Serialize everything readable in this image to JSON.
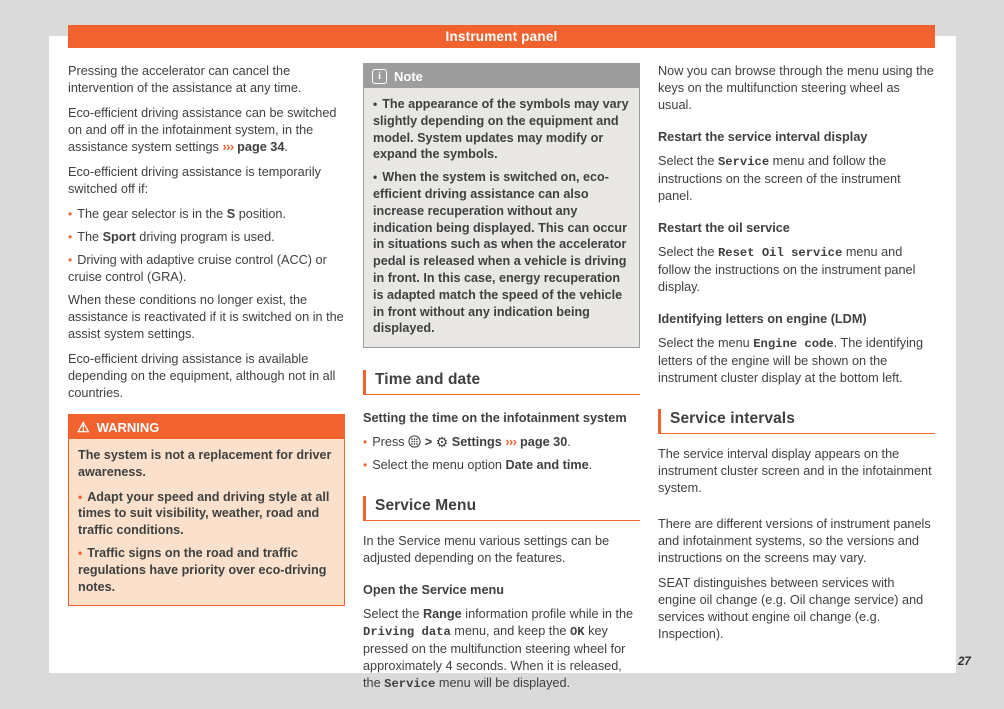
{
  "page": {
    "title": "Instrument panel",
    "page_number": "27",
    "colors": {
      "accent_orange": "#F0622E",
      "canvas_bg": "#DADADA",
      "page_bg": "#FFFFFF",
      "body_text": "#3F4040",
      "note_header_bg": "#9D9D9D",
      "note_body_bg": "#E8E7E4",
      "warning_body_bg": "#FBE1CB"
    }
  },
  "boxes": {
    "warning_title": "WARNING",
    "note_title": "Note"
  },
  "columns": {
    "left": [
      {
        "type": "p",
        "segments": [
          {
            "t": "Pressing the accelerator can cancel the intervention of the assistance at any time."
          }
        ]
      },
      {
        "type": "p",
        "segments": [
          {
            "t": "Eco-efficient driving assistance can be switched on and off in the infotainment system, in the assistance system settings "
          },
          {
            "a": "›››"
          },
          {
            "b": " page 34"
          },
          {
            "t": "."
          }
        ]
      },
      {
        "type": "p",
        "segments": [
          {
            "t": "Eco-efficient driving assistance is temporarily switched off if:"
          }
        ]
      },
      {
        "type": "bullet",
        "segments": [
          {
            "t": "The gear selector is in the "
          },
          {
            "b": "S"
          },
          {
            "t": " position."
          }
        ]
      },
      {
        "type": "bullet",
        "segments": [
          {
            "t": "The "
          },
          {
            "b": "Sport"
          },
          {
            "t": " driving program is used."
          }
        ]
      },
      {
        "type": "bullet",
        "segments": [
          {
            "t": "Driving with adaptive cruise control (ACC) or cruise control (GRA)."
          }
        ]
      },
      {
        "type": "p",
        "segments": [
          {
            "t": "When these conditions no longer exist, the assistance is reactivated if it is switched on in the assist system settings."
          }
        ]
      },
      {
        "type": "p",
        "segments": [
          {
            "t": "Eco-efficient driving assistance is available depending on the equipment, although not in all countries."
          }
        ]
      },
      {
        "type": "warning",
        "title": "WARNING",
        "icon": "warning-triangle-icon",
        "blocks": [
          {
            "type": "p",
            "segments": [
              {
                "t": "The system is not a replacement for driver awareness."
              }
            ]
          },
          {
            "type": "bullet",
            "segments": [
              {
                "t": "Adapt your speed and driving style at all times to suit visibility, weather, road and traffic conditions."
              }
            ]
          },
          {
            "type": "bullet",
            "segments": [
              {
                "t": "Traffic signs on the road and traffic regulations have priority over eco-driving notes."
              }
            ]
          }
        ]
      }
    ],
    "middle": [
      {
        "type": "note",
        "title": "Note",
        "icon": "info-icon",
        "blocks": [
          {
            "type": "bullet",
            "segments": [
              {
                "t": "The appearance of the symbols may vary slightly depending on the equipment and model. System updates may modify or expand the symbols."
              }
            ]
          },
          {
            "type": "bullet",
            "segments": [
              {
                "t": "When the system is switched on, eco-efficient driving assistance can also increase recuperation without any indication being displayed. This can occur in situations such as when the accelerator pedal is released when a vehicle is driving in front. In this case, energy recuperation is adapted match the speed of the vehicle in front without any indication being displayed."
              }
            ]
          }
        ]
      },
      {
        "type": "section",
        "text": "Time and date"
      },
      {
        "type": "h3",
        "text": "Setting the time on the infotainment system"
      },
      {
        "type": "bullet",
        "segments": [
          {
            "t": "Press "
          },
          {
            "icon": "menu-button-icon"
          },
          {
            "b": " > "
          },
          {
            "icon": "gear-icon"
          },
          {
            "b": " Settings "
          },
          {
            "a": "›››"
          },
          {
            "b": " page 30"
          },
          {
            "t": "."
          }
        ]
      },
      {
        "type": "bullet",
        "segments": [
          {
            "t": "Select the menu option "
          },
          {
            "b": "Date and time"
          },
          {
            "t": "."
          }
        ]
      },
      {
        "type": "section",
        "text": "Service Menu"
      },
      {
        "type": "p",
        "segments": [
          {
            "t": "In the Service menu various settings can be adjusted depending on the features."
          }
        ]
      },
      {
        "type": "h3",
        "text": "Open the Service menu"
      },
      {
        "type": "p",
        "segments": [
          {
            "t": "Select the "
          },
          {
            "b": "Range"
          },
          {
            "t": " information profile while in the "
          },
          {
            "m": "Driving data"
          },
          {
            "t": " menu, and keep the "
          },
          {
            "m": "OK"
          },
          {
            "t": " key pressed on the multifunction steering wheel for approximately 4 seconds. When it is released, the "
          },
          {
            "m": "Service"
          },
          {
            "t": " menu will be displayed."
          }
        ]
      }
    ],
    "right": [
      {
        "type": "p",
        "segments": [
          {
            "t": "Now you can browse through the menu using the keys on the multifunction steering wheel as usual."
          }
        ]
      },
      {
        "type": "h3",
        "text": "Restart the service interval display"
      },
      {
        "type": "p",
        "segments": [
          {
            "t": "Select the "
          },
          {
            "m": "Service"
          },
          {
            "t": " menu and follow the instructions on the screen of the instrument panel."
          }
        ]
      },
      {
        "type": "h3",
        "text": "Restart the oil service"
      },
      {
        "type": "p",
        "segments": [
          {
            "t": "Select the "
          },
          {
            "m": "Reset Oil service"
          },
          {
            "t": " menu and follow the instructions on the instrument panel display."
          }
        ]
      },
      {
        "type": "h3",
        "text": "Identifying letters on engine (LDM)"
      },
      {
        "type": "p",
        "segments": [
          {
            "t": "Select the menu "
          },
          {
            "m": "Engine code"
          },
          {
            "t": ". The identifying letters of the engine will be shown on the instrument cluster display at the bottom left."
          }
        ]
      },
      {
        "type": "section",
        "text": "Service intervals"
      },
      {
        "type": "p",
        "segments": [
          {
            "t": "The service interval display appears on the instrument cluster screen and in the infotainment system."
          }
        ]
      },
      {
        "type": "spacer"
      },
      {
        "type": "p",
        "segments": [
          {
            "t": "There are different versions of instrument panels and infotainment systems, so the versions and instructions on the screens may vary."
          }
        ]
      },
      {
        "type": "p",
        "segments": [
          {
            "t": "SEAT distinguishes between services with engine oil change (e.g. Oil change service) and services without engine oil change (e.g. Inspection)."
          }
        ]
      }
    ]
  }
}
